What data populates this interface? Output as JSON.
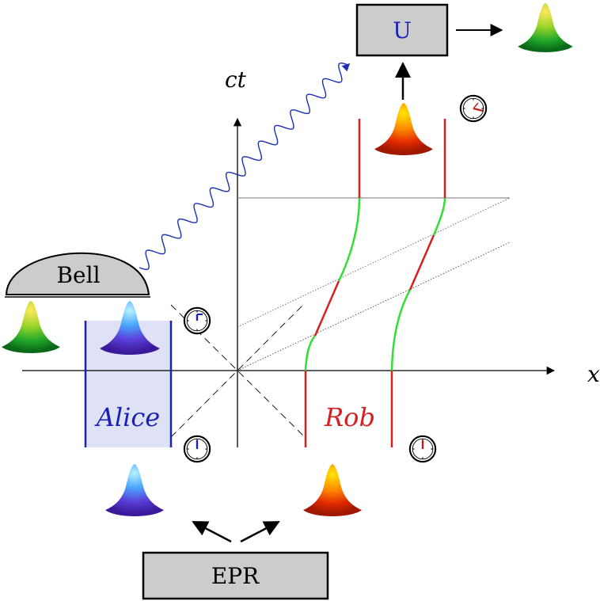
{
  "boxes": {
    "u_label": "U",
    "epr_label": "EPR",
    "bell_label": "Bell"
  },
  "axes": {
    "x_label": "x",
    "ct_label": "ct"
  },
  "observers": {
    "alice_label": "Alice",
    "rob_label": "Rob"
  },
  "colors": {
    "alice_blue": "#1a22b5",
    "rob_red": "#d42020",
    "accel_green": "#33dd33",
    "box_gray": "#cccccc",
    "alice_band": "#dfe1f7",
    "photon_blue": "#1a2fb5"
  },
  "icons": [
    "clock-icon",
    "wavepacket-blob-icon",
    "photon-wave-icon"
  ]
}
